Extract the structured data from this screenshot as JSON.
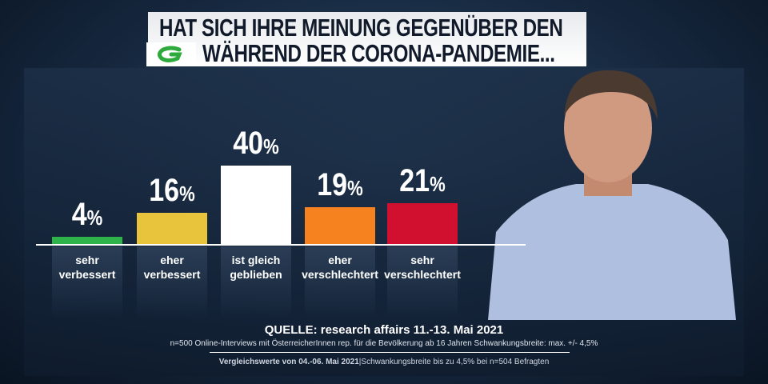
{
  "title": {
    "line1": "HAT SICH IHRE MEINUNG GEGENÜBER DEN",
    "line2": "WÄHREND DER CORONA-PANDEMIE...",
    "logo": "G"
  },
  "chart_data": {
    "type": "bar",
    "categories": [
      "sehr verbessert",
      "eher verbessert",
      "ist gleich geblieben",
      "eher verschlechtert",
      "sehr verschlechtert"
    ],
    "values": [
      4,
      16,
      40,
      19,
      21
    ],
    "colors": [
      "#2db34a",
      "#e8c43d",
      "#ffffff",
      "#f5821f",
      "#d0102e"
    ],
    "unit": "%",
    "ylim": [
      0,
      40
    ]
  },
  "labels": [
    [
      "sehr",
      "verbessert"
    ],
    [
      "eher",
      "verbessert"
    ],
    [
      "ist gleich",
      "geblieben"
    ],
    [
      "eher",
      "verschlechtert"
    ],
    [
      "sehr",
      "verschlechtert"
    ]
  ],
  "footer": {
    "source": "QUELLE: research affairs 11.-13. Mai 2021",
    "method": "n=500 Online-Interviews mit ÖsterreicherInnen rep. für die Bevölkerung ab 16 Jahren  Schwankungsbreite: max. +/- 4,5%",
    "compare_bold": "Vergleichswerte von  04.-06. Mai 2021",
    "compare_rest": "|Schwankungsbreite bis zu 4,5% bei n=504 Befragten"
  }
}
